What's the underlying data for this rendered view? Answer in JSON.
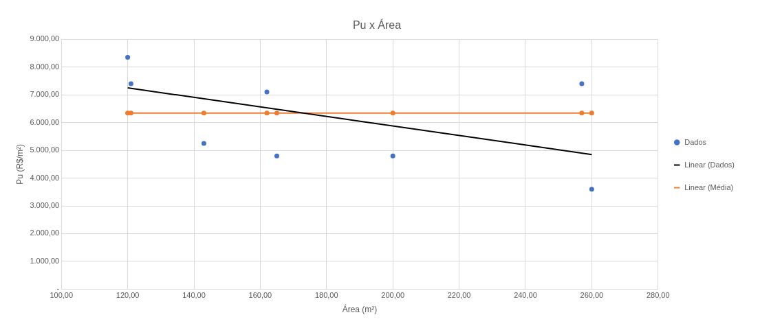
{
  "chart_data": {
    "type": "scatter",
    "title": "Pu x Área",
    "xlabel": "Área (m²)",
    "ylabel": "Pu (R$/m²)",
    "series": [
      {
        "name": "Dados",
        "type": "scatter",
        "marker": "circle",
        "color": "#4472c4",
        "x": [
          120,
          121,
          143,
          162,
          165,
          200,
          257,
          260
        ],
        "values": [
          8350,
          7400,
          5250,
          7100,
          4800,
          4800,
          7400,
          3600
        ]
      },
      {
        "type": "scatter",
        "marker": "circle",
        "color": "#ed7d31",
        "x": [
          120,
          121,
          143,
          162,
          165,
          200,
          257,
          260
        ],
        "values": [
          6340,
          6340,
          6340,
          6340,
          6340,
          6340,
          6340,
          6340
        ]
      },
      {
        "name": "Linear (Dados)",
        "type": "line",
        "marker": "none",
        "color": "#000000",
        "x": [
          120,
          260
        ],
        "values": [
          7250,
          4850
        ]
      },
      {
        "name": "Linear (Média)",
        "type": "line",
        "marker": "none",
        "color": "#ed7d31",
        "x": [
          120,
          260
        ],
        "values": [
          6340,
          6340
        ]
      }
    ],
    "xlim": [
      100,
      280
    ],
    "xticks": [
      {
        "value": 100,
        "label": "100,00"
      },
      {
        "value": 120,
        "label": "120,00"
      },
      {
        "value": 140,
        "label": "140,00"
      },
      {
        "value": 160,
        "label": "160,00"
      },
      {
        "value": 180,
        "label": "180,00"
      },
      {
        "value": 200,
        "label": "200,00"
      },
      {
        "value": 220,
        "label": "220,00"
      },
      {
        "value": 240,
        "label": "240,00"
      },
      {
        "value": 260,
        "label": "260,00"
      },
      {
        "value": 280,
        "label": "280,00"
      }
    ],
    "ylim": [
      0,
      9000
    ],
    "yticks": [
      {
        "value": 0,
        "label": "-"
      },
      {
        "value": 1000,
        "label": "1.000,00"
      },
      {
        "value": 2000,
        "label": "2.000,00"
      },
      {
        "value": 3000,
        "label": "3.000,00"
      },
      {
        "value": 4000,
        "label": "4.000,00"
      },
      {
        "value": 5000,
        "label": "5.000,00"
      },
      {
        "value": 6000,
        "label": "6.000,00"
      },
      {
        "value": 7000,
        "label": "7.000,00"
      },
      {
        "value": 8000,
        "label": "8.000,00"
      },
      {
        "value": 9000,
        "label": "9.000,00"
      }
    ],
    "grid": true,
    "legend": "right"
  }
}
